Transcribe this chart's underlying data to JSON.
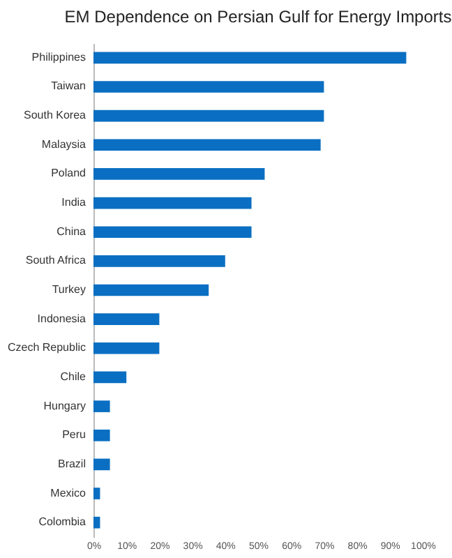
{
  "chart_data": {
    "type": "bar",
    "orientation": "horizontal",
    "title": "EM Dependence on Persian Gulf for Energy Imports",
    "categories": [
      "Philippines",
      "Taiwan",
      "South Korea",
      "Malaysia",
      "Poland",
      "India",
      "China",
      "South Africa",
      "Turkey",
      "Indonesia",
      "Czech Republic",
      "Chile",
      "Hungary",
      "Peru",
      "Brazil",
      "Mexico",
      "Colombia"
    ],
    "values": [
      95,
      70,
      70,
      69,
      52,
      48,
      48,
      40,
      35,
      20,
      20,
      10,
      5,
      5,
      5,
      2,
      2
    ],
    "color": "#0a6fc2",
    "xlim": [
      0,
      100
    ],
    "xticks": [
      {
        "value": 0,
        "label": "0%"
      },
      {
        "value": 10,
        "label": "10%"
      },
      {
        "value": 20,
        "label": "20%"
      },
      {
        "value": 30,
        "label": "30%"
      },
      {
        "value": 40,
        "label": "40%"
      },
      {
        "value": 50,
        "label": "50%"
      },
      {
        "value": 60,
        "label": "60%"
      },
      {
        "value": 70,
        "label": "70%"
      },
      {
        "value": 80,
        "label": "80%"
      },
      {
        "value": 90,
        "label": "90%"
      },
      {
        "value": 100,
        "label": "100%"
      }
    ]
  }
}
